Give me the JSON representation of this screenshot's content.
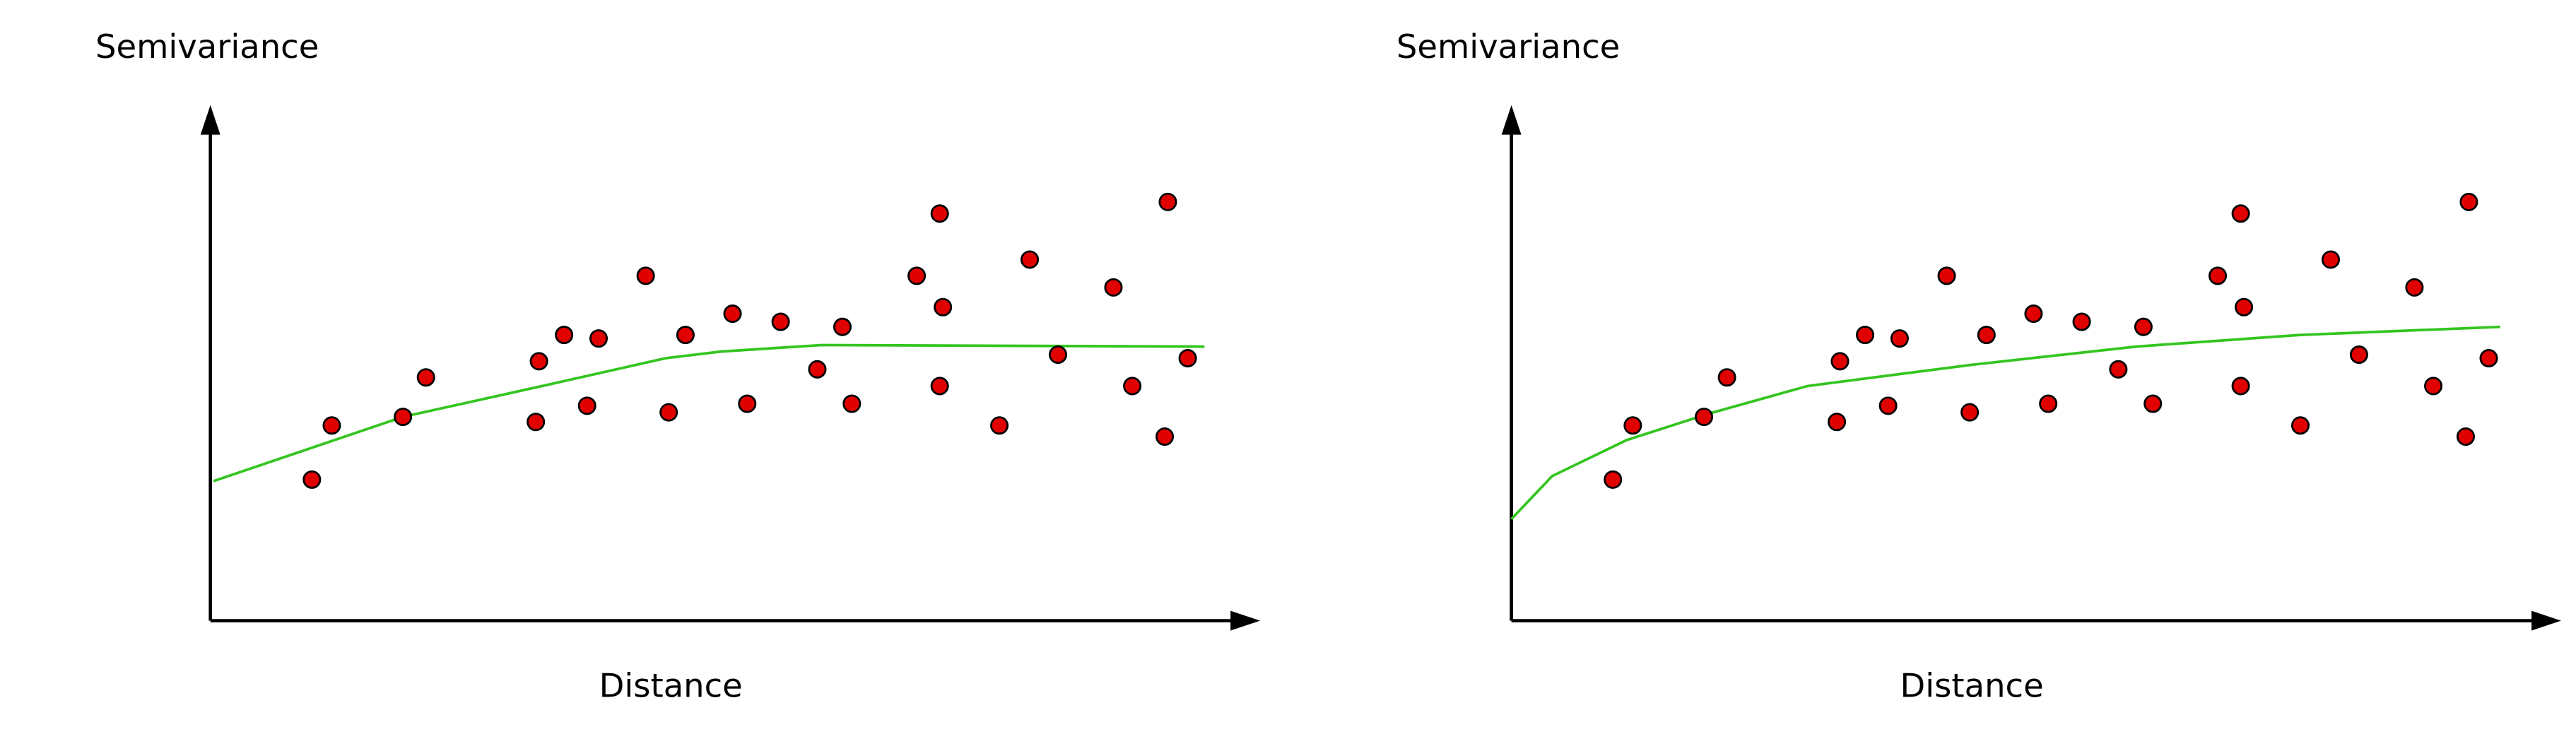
{
  "chart_data": [
    {
      "type": "scatter",
      "y_label": "Semivariance",
      "x_label": "Distance",
      "xlim": [
        0,
        100
      ],
      "ylim": [
        0,
        100
      ],
      "color": "#e00000",
      "x": [
        9.7,
        11.6,
        18.4,
        20.6,
        31.1,
        31.4,
        33.8,
        36.0,
        37.1,
        41.6,
        43.8,
        45.4,
        49.9,
        51.3,
        54.5,
        58.0,
        60.4,
        61.3,
        67.5,
        69.7,
        70.0,
        69.7,
        75.4,
        78.3,
        81.0,
        86.3,
        88.1,
        91.2,
        91.5,
        93.4
      ],
      "values": [
        27.9,
        38.6,
        40.3,
        48.1,
        39.3,
        51.3,
        56.5,
        42.5,
        55.8,
        68.2,
        41.2,
        56.5,
        60.7,
        42.9,
        59.1,
        49.7,
        58.1,
        42.9,
        68.2,
        80.5,
        62.0,
        46.4,
        38.6,
        71.4,
        52.6,
        65.9,
        46.4,
        36.4,
        82.8,
        51.9
      ],
      "fit_line": {
        "color": "#33c51f",
        "x": [
          0.3,
          18.4,
          31.7,
          43.5,
          48.7,
          58.4,
          95.0
        ],
        "values": [
          27.6,
          40.3,
          46.4,
          51.9,
          53.2,
          54.5,
          54.2
        ]
      }
    },
    {
      "type": "scatter",
      "y_label": "Semivariance",
      "x_label": "Distance",
      "xlim": [
        0,
        100
      ],
      "ylim": [
        0,
        100
      ],
      "color": "#e00000",
      "x": [
        9.7,
        11.6,
        18.4,
        20.6,
        31.1,
        31.4,
        33.8,
        36.0,
        37.1,
        41.6,
        43.8,
        45.4,
        49.9,
        51.3,
        54.5,
        58.0,
        60.4,
        61.3,
        67.5,
        69.7,
        70.0,
        69.7,
        75.4,
        78.3,
        81.0,
        86.3,
        88.1,
        91.2,
        91.5,
        93.4
      ],
      "values": [
        27.9,
        38.6,
        40.3,
        48.1,
        39.3,
        51.3,
        56.5,
        42.5,
        55.8,
        68.2,
        41.2,
        56.5,
        60.7,
        42.9,
        59.1,
        49.7,
        58.1,
        42.9,
        68.2,
        80.5,
        62.0,
        46.4,
        38.6,
        71.4,
        52.6,
        65.9,
        46.4,
        36.4,
        82.8,
        51.9
      ],
      "fit_line": {
        "color": "#33c51f",
        "x": [
          0,
          3.9,
          11.0,
          18.8,
          28.3,
          44.0,
          59.7,
          75.4,
          94.5
        ],
        "values": [
          20.1,
          28.6,
          35.7,
          40.9,
          46.4,
          50.6,
          54.2,
          56.5,
          58.1
        ]
      }
    }
  ]
}
